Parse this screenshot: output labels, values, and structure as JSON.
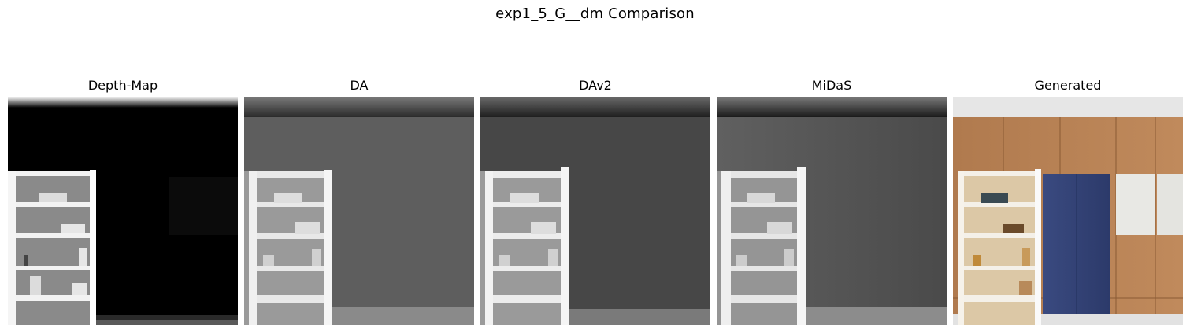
{
  "figure": {
    "suptitle": "exp1_5_G__dm Comparison"
  },
  "panels": [
    {
      "title": "Depth-Map",
      "image_kind": "depth-map-icon"
    },
    {
      "title": "DA",
      "image_kind": "depth-estimate-icon"
    },
    {
      "title": "DAv2",
      "image_kind": "depth-estimate-icon"
    },
    {
      "title": "MiDaS",
      "image_kind": "depth-estimate-icon"
    },
    {
      "title": "Generated",
      "image_kind": "generated-photo-icon"
    }
  ]
}
